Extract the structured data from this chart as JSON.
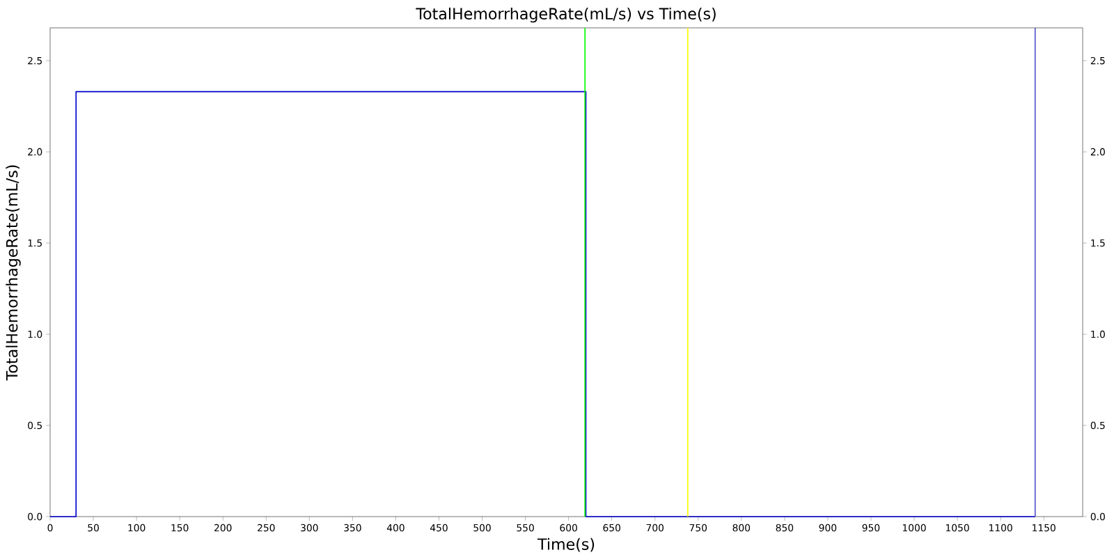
{
  "chart_data": {
    "type": "line",
    "title": "TotalHemorrhageRate(mL/s) vs Time(s)",
    "xlabel": "Time(s)",
    "ylabel": "TotalHemorrhageRate(mL/s)",
    "series": [
      {
        "color": "#0000cc",
        "x": [
          0,
          30,
          30,
          620,
          620,
          1140
        ],
        "values": [
          0,
          0,
          2.33,
          2.33,
          0,
          0
        ]
      }
    ],
    "xlim": [
      0,
      1195
    ],
    "ylim": [
      0,
      2.68
    ],
    "xticks": [
      0,
      50,
      100,
      150,
      200,
      250,
      300,
      350,
      400,
      450,
      500,
      550,
      600,
      650,
      700,
      750,
      800,
      850,
      900,
      950,
      1000,
      1050,
      1100,
      1150
    ],
    "yticks": [
      {
        "value": 0,
        "label": "0.0"
      },
      {
        "value": 0.5,
        "label": "0.5"
      },
      {
        "value": 1,
        "label": "1.0"
      },
      {
        "value": 1.5,
        "label": "1.5"
      },
      {
        "value": 2,
        "label": "2.0"
      },
      {
        "value": 2.5,
        "label": "2.5"
      }
    ],
    "y2lim": [
      0,
      2.68
    ],
    "y2ticks": [
      {
        "value": 0,
        "label": "0.0"
      },
      {
        "value": 0.5,
        "label": "0.5"
      },
      {
        "value": 1,
        "label": "1.0"
      },
      {
        "value": 1.5,
        "label": "1.5"
      },
      {
        "value": 2,
        "label": "2.0"
      },
      {
        "value": 2.5,
        "label": "2.5"
      }
    ],
    "ref_lines": [
      {
        "axis": "x",
        "value": 619,
        "color": "#00ff00"
      },
      {
        "axis": "x",
        "value": 738,
        "color": "#ffff00"
      },
      {
        "axis": "x",
        "value": 1140,
        "color": "#5252c8"
      }
    ],
    "grid": false
  }
}
